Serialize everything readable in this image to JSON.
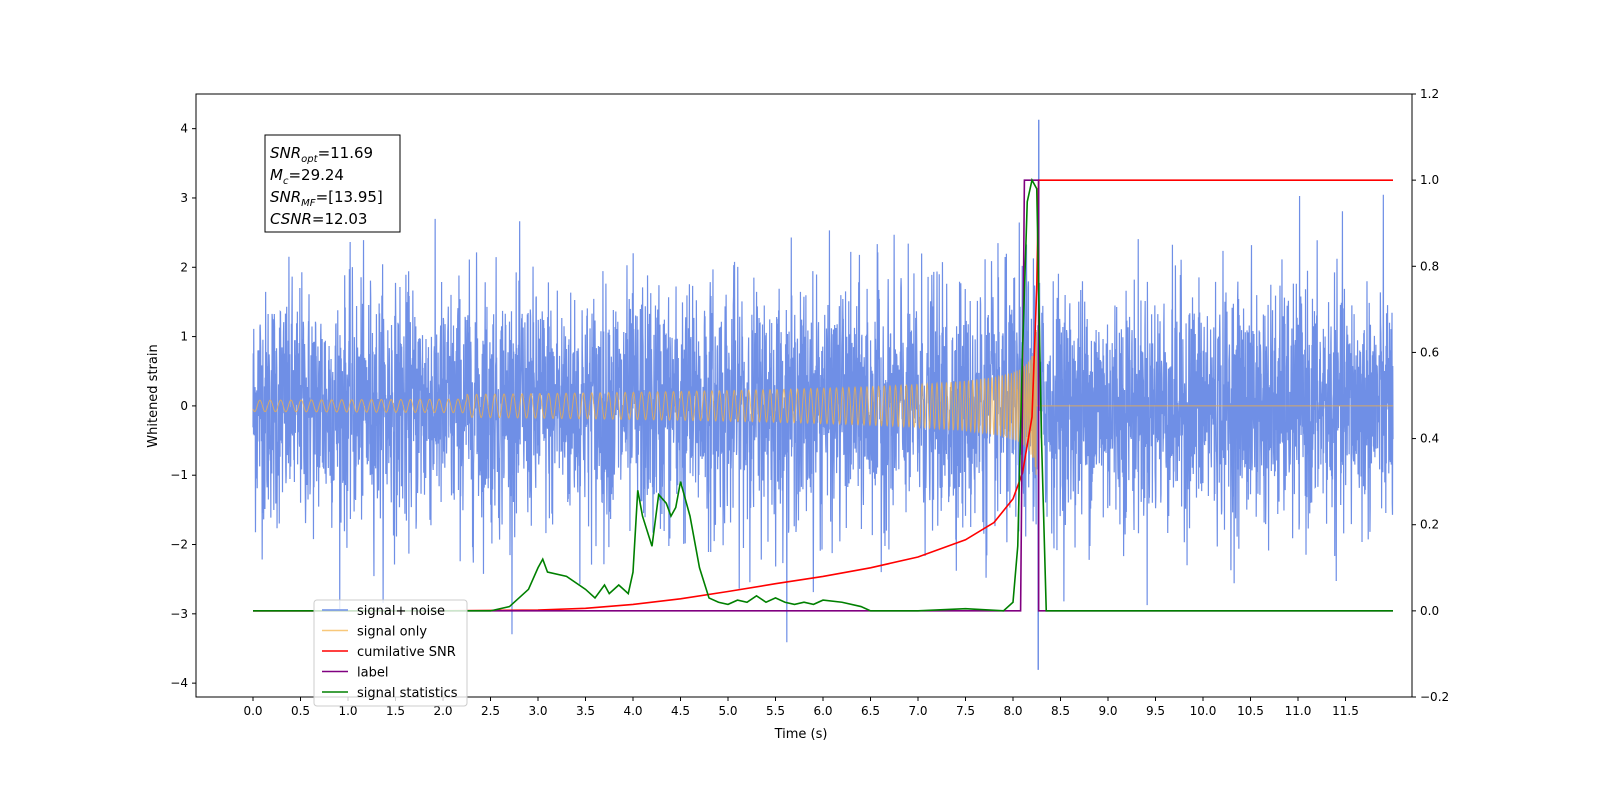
{
  "chart_data": {
    "type": "line",
    "xlabel": "Time (s)",
    "ylabel": "Whitened strain",
    "xlim": [
      -0.6,
      12.2
    ],
    "ylim": [
      -4.2,
      4.5
    ],
    "ylim_right": [
      -0.2,
      1.2
    ],
    "x_ticks": [
      "0.0",
      "0.5",
      "1.0",
      "1.5",
      "2.0",
      "2.5",
      "3.0",
      "3.5",
      "4.0",
      "4.5",
      "5.0",
      "5.5",
      "6.0",
      "6.5",
      "7.0",
      "7.5",
      "8.0",
      "8.5",
      "9.0",
      "9.5",
      "10.0",
      "10.5",
      "11.0",
      "11.5"
    ],
    "y_ticks_left": [
      "4",
      "3",
      "2",
      "1",
      "0",
      "−1",
      "−2",
      "−3",
      "−4"
    ],
    "y_ticks_right": [
      "1.2",
      "1.0",
      "0.8",
      "0.6",
      "0.4",
      "0.2",
      "0.0",
      "−0.2"
    ],
    "grid": false,
    "legend_position": "lower-left",
    "annotation": {
      "lines": [
        {
          "sym": "SNR",
          "sub": "opt",
          "val": "=11.69"
        },
        {
          "sym": "M",
          "sub": "c",
          "val": "=29.24"
        },
        {
          "sym": "SNR",
          "sub": "MF",
          "val": "=[13.95]"
        },
        {
          "sym": "CSNR",
          "sub": "",
          "val": "=12.03"
        }
      ]
    },
    "series": [
      {
        "name": "signal+ noise",
        "color": "#6f8fe6",
        "axis": "left",
        "kind": "noise",
        "x_range": [
          0.0,
          12.0
        ],
        "baseline_std": 0.85,
        "peak": 4.12,
        "trough": -3.8,
        "peak_time": 8.27
      },
      {
        "name": "signal only",
        "color": "#f5b041",
        "axis": "left",
        "kind": "chirp",
        "x_range": [
          0.0,
          12.0
        ],
        "merger_time": 8.25,
        "max_amplitude": 1.1
      },
      {
        "name": "cumilative SNR",
        "color": "#ff0000",
        "axis": "right",
        "x": [
          0.0,
          2.0,
          3.0,
          3.5,
          4.0,
          4.5,
          5.0,
          5.5,
          6.0,
          6.5,
          7.0,
          7.5,
          7.8,
          8.0,
          8.1,
          8.2,
          8.25,
          8.27,
          12.0
        ],
        "y": [
          0.0,
          0.0,
          0.002,
          0.006,
          0.015,
          0.028,
          0.045,
          0.063,
          0.08,
          0.1,
          0.125,
          0.165,
          0.205,
          0.26,
          0.32,
          0.45,
          0.75,
          1.0,
          1.0
        ]
      },
      {
        "name": "label",
        "color": "#800080",
        "axis": "right",
        "x": [
          0.0,
          8.08,
          8.12,
          8.27,
          8.27,
          12.0
        ],
        "y": [
          0.0,
          0.0,
          1.0,
          1.0,
          0.0,
          0.0
        ]
      },
      {
        "name": "signal statistics",
        "color": "#008000",
        "axis": "right",
        "x": [
          0.0,
          2.5,
          2.7,
          2.9,
          3.0,
          3.05,
          3.1,
          3.3,
          3.5,
          3.6,
          3.7,
          3.75,
          3.85,
          3.95,
          4.0,
          4.05,
          4.1,
          4.2,
          4.27,
          4.35,
          4.4,
          4.45,
          4.5,
          4.6,
          4.7,
          4.8,
          4.9,
          5.0,
          5.1,
          5.2,
          5.3,
          5.4,
          5.5,
          5.6,
          5.7,
          5.8,
          5.9,
          6.0,
          6.2,
          6.4,
          6.5,
          7.0,
          7.5,
          7.9,
          8.0,
          8.05,
          8.1,
          8.15,
          8.2,
          8.25,
          8.3,
          8.35,
          12.0
        ],
        "y": [
          0.0,
          0.0,
          0.01,
          0.05,
          0.1,
          0.12,
          0.09,
          0.08,
          0.05,
          0.03,
          0.06,
          0.04,
          0.06,
          0.04,
          0.09,
          0.28,
          0.22,
          0.15,
          0.27,
          0.25,
          0.22,
          0.24,
          0.3,
          0.22,
          0.1,
          0.03,
          0.02,
          0.015,
          0.025,
          0.02,
          0.035,
          0.02,
          0.03,
          0.02,
          0.015,
          0.02,
          0.015,
          0.025,
          0.02,
          0.01,
          0.0,
          0.0,
          0.005,
          0.0,
          0.02,
          0.15,
          0.6,
          0.95,
          1.0,
          0.98,
          0.4,
          0.0,
          0.0
        ]
      }
    ]
  }
}
